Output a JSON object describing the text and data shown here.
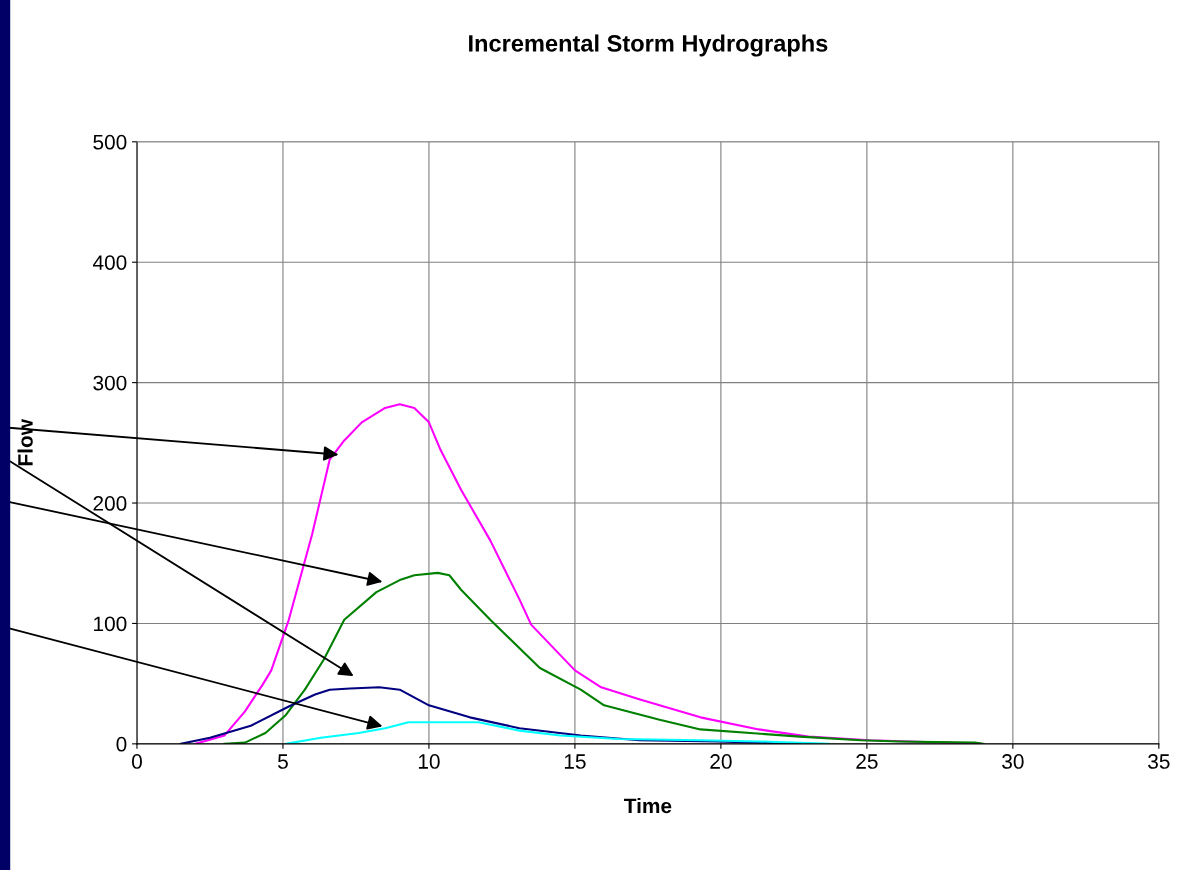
{
  "chart_data": {
    "type": "line",
    "title": "Incremental Storm Hydrographs",
    "xlabel": "Time",
    "ylabel": "Flow",
    "xlim": [
      0,
      35
    ],
    "xticks": [
      0,
      5,
      10,
      15,
      20,
      25,
      30,
      35
    ],
    "ylim": [
      0,
      500
    ],
    "yticks": [
      0,
      100,
      200,
      300,
      400,
      500
    ],
    "grid": true,
    "legend": false,
    "series": [
      {
        "color": "#ff00ff",
        "x": [
          2.0,
          3.0,
          3.7,
          4.3,
          4.6,
          5.2,
          6.0,
          6.6,
          7.1,
          7.7,
          8.5,
          9.0,
          9.5,
          10.0,
          10.4,
          11.1,
          12.1,
          13.1,
          13.5,
          15.0,
          15.9,
          17.2,
          19.3,
          21.3,
          23.0,
          25.1,
          28.9
        ],
        "values": [
          0,
          7,
          27,
          49,
          61,
          103,
          174,
          236,
          252,
          267,
          279,
          282,
          279,
          267,
          244,
          211,
          169,
          120,
          99,
          61,
          47,
          37,
          22,
          12,
          6,
          3,
          0
        ]
      },
      {
        "color": "#008000",
        "x": [
          3.0,
          3.7,
          4.4,
          5.1,
          5.75,
          6.4,
          7.1,
          8.2,
          9.0,
          9.5,
          10.3,
          10.7,
          11.1,
          12.1,
          13.8,
          15.2,
          16.0,
          17.9,
          19.3,
          22.7,
          24.8,
          26.1,
          28.7,
          29.0
        ],
        "values": [
          0,
          1,
          9,
          24,
          45,
          70,
          103,
          126,
          136,
          140,
          142,
          140,
          128,
          103,
          63,
          45,
          32,
          20,
          12,
          6,
          3,
          2,
          1,
          0
        ]
      },
      {
        "color": "#000080",
        "x": [
          1.5,
          2.5,
          3.9,
          5.2,
          6.1,
          6.6,
          7.3,
          8.3,
          9.0,
          10.0,
          11.4,
          13.1,
          15.2,
          17.2,
          19.9,
          21.3,
          22.7
        ],
        "values": [
          0,
          5,
          15,
          31,
          41,
          45,
          46,
          47,
          45,
          32,
          22,
          13,
          7,
          3,
          2,
          1,
          0
        ]
      },
      {
        "color": "#00ffff",
        "x": [
          5.1,
          6.3,
          7.6,
          8.5,
          9.3,
          10.0,
          11.7,
          13.1,
          14.5,
          16.5,
          19.3,
          21.3,
          23.7
        ],
        "values": [
          0,
          5,
          9,
          13,
          18,
          18,
          18,
          11,
          7,
          4,
          3,
          2,
          0
        ]
      }
    ]
  }
}
